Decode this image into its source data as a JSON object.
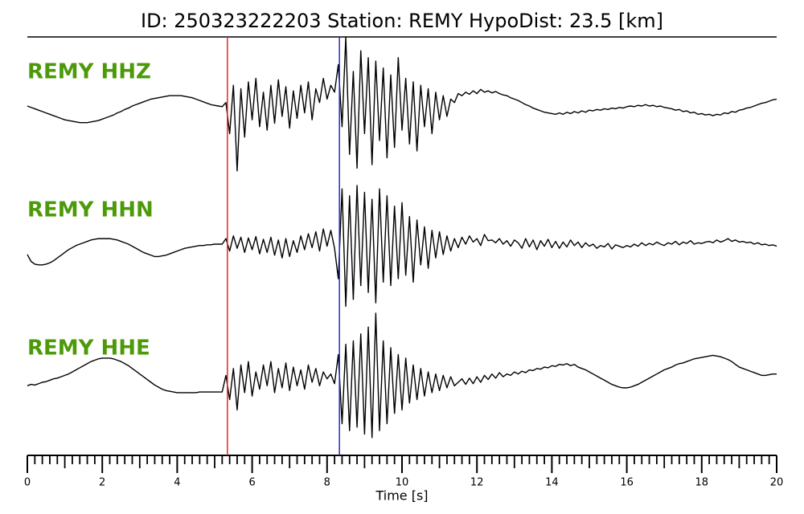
{
  "chart_data": {
    "type": "line",
    "title": "ID: 250323222203   Station: REMY   HypoDist:    23.5 [km]",
    "xlabel": "Time [s]",
    "xlim": [
      0,
      20
    ],
    "xticks": [
      0,
      2,
      4,
      6,
      8,
      10,
      12,
      14,
      16,
      18,
      20
    ],
    "xminor": 0.2,
    "ylim": [
      -100,
      100
    ],
    "label_color": "#4c9a0a",
    "vlines": [
      {
        "x": 5.34,
        "color": "#e8231f"
      },
      {
        "x": 8.33,
        "color": "#2a2ad0"
      }
    ],
    "x": [
      0,
      0.1,
      0.2,
      0.3,
      0.4,
      0.5,
      0.6,
      0.7,
      0.8,
      0.9,
      1,
      1.1,
      1.2,
      1.3,
      1.4,
      1.5,
      1.6,
      1.7,
      1.8,
      1.9,
      2,
      2.1,
      2.2,
      2.3,
      2.4,
      2.5,
      2.6,
      2.7,
      2.8,
      2.9,
      3,
      3.1,
      3.2,
      3.3,
      3.4,
      3.5,
      3.6,
      3.7,
      3.8,
      3.9,
      4,
      4.1,
      4.2,
      4.3,
      4.4,
      4.5,
      4.6,
      4.7,
      4.8,
      4.9,
      5,
      5.1,
      5.2,
      5.3,
      5.4,
      5.5,
      5.6,
      5.7,
      5.8,
      5.9,
      6,
      6.1,
      6.2,
      6.3,
      6.4,
      6.5,
      6.6,
      6.7,
      6.8,
      6.9,
      7,
      7.1,
      7.2,
      7.3,
      7.4,
      7.5,
      7.6,
      7.7,
      7.8,
      7.9,
      8,
      8.1,
      8.2,
      8.3,
      8.4,
      8.5,
      8.6,
      8.7,
      8.8,
      8.9,
      9,
      9.1,
      9.2,
      9.3,
      9.4,
      9.5,
      9.6,
      9.7,
      9.8,
      9.9,
      10,
      10.1,
      10.2,
      10.3,
      10.4,
      10.5,
      10.6,
      10.7,
      10.8,
      10.9,
      11,
      11.1,
      11.2,
      11.3,
      11.4,
      11.5,
      11.6,
      11.7,
      11.8,
      11.9,
      12,
      12.1,
      12.2,
      12.3,
      12.4,
      12.5,
      12.6,
      12.7,
      12.8,
      12.9,
      13,
      13.1,
      13.2,
      13.3,
      13.4,
      13.5,
      13.6,
      13.7,
      13.8,
      13.9,
      14,
      14.1,
      14.2,
      14.3,
      14.4,
      14.5,
      14.6,
      14.7,
      14.8,
      14.9,
      15,
      15.1,
      15.2,
      15.3,
      15.4,
      15.5,
      15.6,
      15.7,
      15.8,
      15.9,
      16,
      16.1,
      16.2,
      16.3,
      16.4,
      16.5,
      16.6,
      16.7,
      16.8,
      16.9,
      17,
      17.1,
      17.2,
      17.3,
      17.4,
      17.5,
      17.6,
      17.7,
      17.8,
      17.9,
      18,
      18.1,
      18.2,
      18.3,
      18.4,
      18.5,
      18.6,
      18.7,
      18.8,
      18.9,
      19,
      19.1,
      19.2,
      19.3,
      19.4,
      19.5,
      19.6,
      19.7,
      19.8,
      19.9,
      20
    ],
    "series": [
      {
        "name": "REMY HHZ",
        "color": "#000000",
        "values": [
          0,
          -2,
          -4,
          -6,
          -8,
          -10,
          -12,
          -14,
          -16,
          -18,
          -20,
          -21,
          -22,
          -23,
          -24,
          -24,
          -24,
          -23,
          -22,
          -21,
          -19,
          -17,
          -15,
          -13,
          -10,
          -8,
          -5,
          -3,
          0,
          2,
          4,
          6,
          8,
          10,
          11,
          12,
          13,
          14,
          15,
          15,
          15,
          15,
          14,
          13,
          12,
          10,
          8,
          6,
          4,
          2,
          1,
          0,
          -1,
          5,
          -40,
          30,
          -94,
          25,
          -45,
          35,
          -20,
          40,
          -30,
          20,
          -35,
          30,
          -25,
          38,
          -15,
          28,
          -32,
          22,
          -18,
          30,
          -10,
          35,
          -20,
          25,
          5,
          40,
          10,
          30,
          20,
          60,
          -30,
          100,
          -70,
          50,
          -90,
          80,
          -40,
          70,
          -85,
          65,
          -50,
          55,
          -75,
          45,
          -60,
          70,
          -35,
          40,
          -55,
          35,
          -65,
          30,
          -30,
          25,
          -40,
          20,
          -20,
          15,
          -15,
          10,
          5,
          18,
          15,
          20,
          17,
          22,
          18,
          24,
          20,
          22,
          19,
          21,
          18,
          16,
          15,
          12,
          10,
          8,
          5,
          2,
          0,
          -3,
          -5,
          -7,
          -9,
          -10,
          -11,
          -12,
          -10,
          -12,
          -9,
          -11,
          -8,
          -10,
          -7,
          -9,
          -6,
          -7,
          -5,
          -6,
          -4,
          -5,
          -3,
          -4,
          -2,
          -3,
          -1,
          0,
          -1,
          1,
          0,
          2,
          0,
          1,
          -1,
          0,
          -2,
          -3,
          -4,
          -6,
          -5,
          -8,
          -7,
          -10,
          -9,
          -12,
          -11,
          -13,
          -12,
          -14,
          -12,
          -13,
          -10,
          -11,
          -8,
          -9,
          -6,
          -5,
          -3,
          -2,
          0,
          2,
          4,
          5,
          7,
          9,
          10
        ]
      },
      {
        "name": "REMY HHN",
        "color": "#000000",
        "values": [
          -15,
          -25,
          -29,
          -30,
          -30,
          -29,
          -27,
          -24,
          -20,
          -16,
          -12,
          -8,
          -5,
          -2,
          0,
          2,
          4,
          6,
          7,
          8,
          8,
          8,
          8,
          7,
          6,
          4,
          2,
          0,
          -3,
          -6,
          -9,
          -12,
          -14,
          -16,
          -18,
          -18,
          -17,
          -16,
          -14,
          -12,
          -10,
          -8,
          -6,
          -5,
          -4,
          -3,
          -2,
          -2,
          -1,
          -1,
          0,
          0,
          0,
          8,
          -10,
          12,
          -6,
          10,
          -12,
          9,
          -8,
          11,
          -14,
          7,
          -12,
          10,
          -16,
          6,
          -20,
          8,
          -18,
          5,
          -12,
          12,
          -8,
          15,
          -5,
          18,
          -10,
          22,
          -3,
          20,
          -6,
          -50,
          80,
          -90,
          70,
          -80,
          85,
          -60,
          75,
          -70,
          65,
          -85,
          80,
          -55,
          70,
          -60,
          55,
          -50,
          60,
          -45,
          40,
          -55,
          35,
          -30,
          25,
          -35,
          20,
          -20,
          18,
          -15,
          12,
          -10,
          8,
          -5,
          10,
          0,
          12,
          3,
          8,
          -2,
          14,
          5,
          6,
          2,
          8,
          0,
          5,
          -3,
          6,
          2,
          -6,
          8,
          -4,
          6,
          -8,
          5,
          -3,
          7,
          -5,
          4,
          -6,
          3,
          -4,
          6,
          -2,
          3,
          -5,
          2,
          -3,
          0,
          -6,
          -2,
          -4,
          1,
          -7,
          -1,
          -3,
          -5,
          -2,
          -4,
          0,
          -3,
          2,
          -2,
          1,
          -1,
          3,
          0,
          -2,
          2,
          0,
          4,
          -1,
          3,
          1,
          5,
          0,
          2,
          1,
          3,
          4,
          2,
          6,
          3,
          5,
          8,
          4,
          6,
          3,
          4,
          2,
          3,
          0,
          2,
          -1,
          0,
          -2,
          -1,
          -3
        ]
      },
      {
        "name": "REMY HHE",
        "color": "#000000",
        "values": [
          -5,
          -3,
          -4,
          -2,
          0,
          1,
          3,
          5,
          6,
          8,
          10,
          12,
          15,
          18,
          21,
          24,
          27,
          30,
          32,
          34,
          35,
          35,
          35,
          34,
          32,
          30,
          27,
          24,
          20,
          16,
          12,
          8,
          4,
          0,
          -4,
          -7,
          -10,
          -12,
          -13,
          -14,
          -15,
          -15,
          -15,
          -15,
          -15,
          -15,
          -14,
          -14,
          -14,
          -14,
          -14,
          -14,
          -14,
          10,
          -25,
          20,
          -40,
          25,
          -15,
          30,
          -20,
          15,
          -10,
          25,
          -5,
          30,
          -15,
          20,
          -8,
          28,
          -12,
          22,
          -5,
          18,
          -10,
          25,
          0,
          20,
          -5,
          15,
          5,
          12,
          -2,
          40,
          -60,
          55,
          -70,
          60,
          -65,
          70,
          -75,
          80,
          -80,
          100,
          -70,
          60,
          -60,
          50,
          -45,
          40,
          -40,
          35,
          -30,
          25,
          -25,
          20,
          -20,
          15,
          -15,
          12,
          -12,
          10,
          -8,
          8,
          -5,
          0,
          5,
          -3,
          6,
          -2,
          8,
          0,
          10,
          4,
          12,
          6,
          14,
          8,
          12,
          10,
          15,
          12,
          16,
          14,
          18,
          17,
          20,
          19,
          22,
          21,
          24,
          23,
          26,
          25,
          27,
          24,
          26,
          22,
          20,
          18,
          15,
          12,
          9,
          6,
          3,
          0,
          -3,
          -5,
          -7,
          -8,
          -8,
          -7,
          -5,
          -3,
          0,
          3,
          6,
          9,
          12,
          15,
          18,
          20,
          22,
          25,
          27,
          28,
          30,
          32,
          34,
          35,
          36,
          37,
          38,
          39,
          38,
          37,
          35,
          33,
          30,
          26,
          22,
          20,
          18,
          16,
          14,
          12,
          10,
          10,
          11,
          12,
          12
        ]
      }
    ]
  }
}
